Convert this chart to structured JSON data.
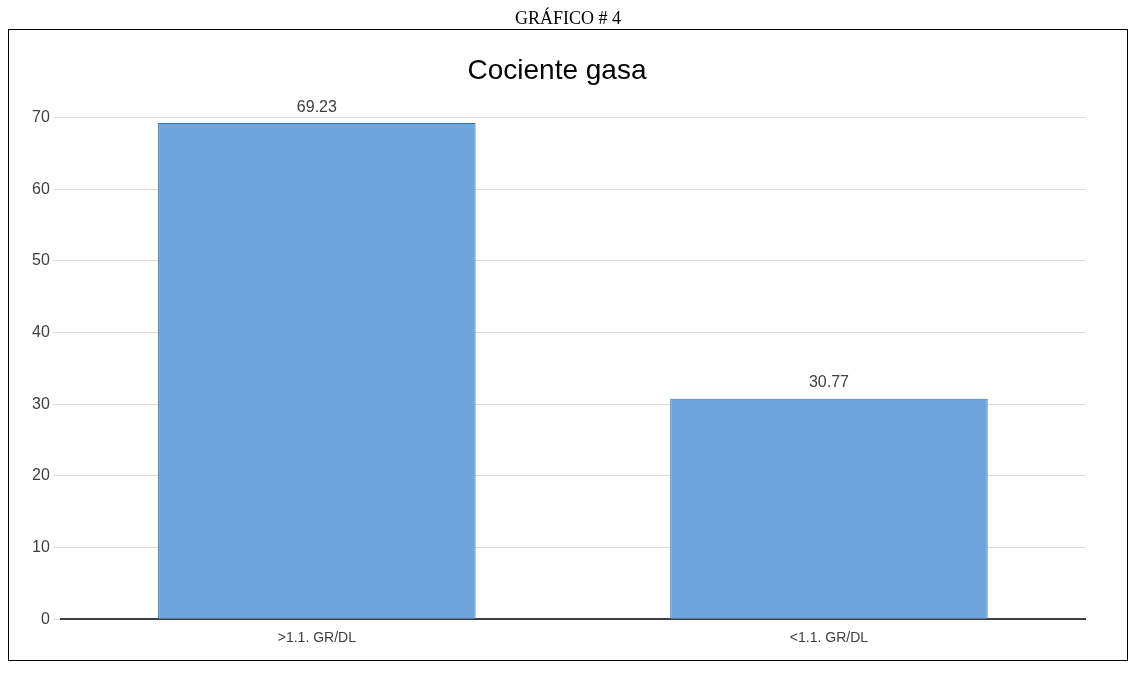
{
  "chart_data": {
    "type": "bar",
    "title": "Cociente gasa",
    "annotations": [
      "GRÁFICO # 4"
    ],
    "categories": [
      ">1.1. GR/DL",
      "<1.1. GR/DL"
    ],
    "values": [
      69.23,
      30.77
    ],
    "color": "#6fa5dd",
    "ylim": [
      0,
      70
    ],
    "yticks": [
      0,
      10,
      20,
      30,
      40,
      50,
      60,
      70
    ],
    "grid": "y",
    "data_labels": true,
    "legend": false
  }
}
